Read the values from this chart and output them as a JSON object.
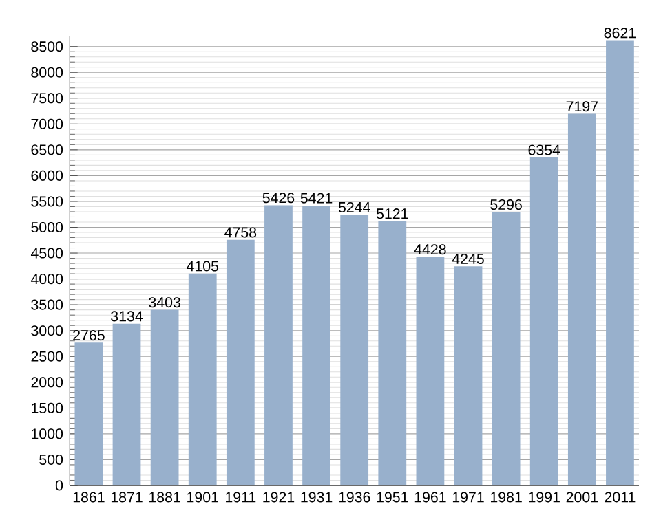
{
  "chart_data": {
    "type": "bar",
    "categories": [
      "1861",
      "1871",
      "1881",
      "1901",
      "1911",
      "1921",
      "1931",
      "1936",
      "1951",
      "1961",
      "1971",
      "1981",
      "1991",
      "2001",
      "2011"
    ],
    "values": [
      2765,
      3134,
      3403,
      4105,
      4758,
      5426,
      5421,
      5244,
      5121,
      4428,
      4245,
      5296,
      6354,
      7197,
      8621
    ],
    "color": "#98b0cc",
    "ylim": [
      0,
      8700
    ],
    "yticks": [
      0,
      500,
      1000,
      1500,
      2000,
      2500,
      3000,
      3500,
      4000,
      4500,
      5000,
      5500,
      6000,
      6500,
      7000,
      7500,
      8000,
      8500
    ],
    "grid": "y",
    "data_labels": true
  }
}
